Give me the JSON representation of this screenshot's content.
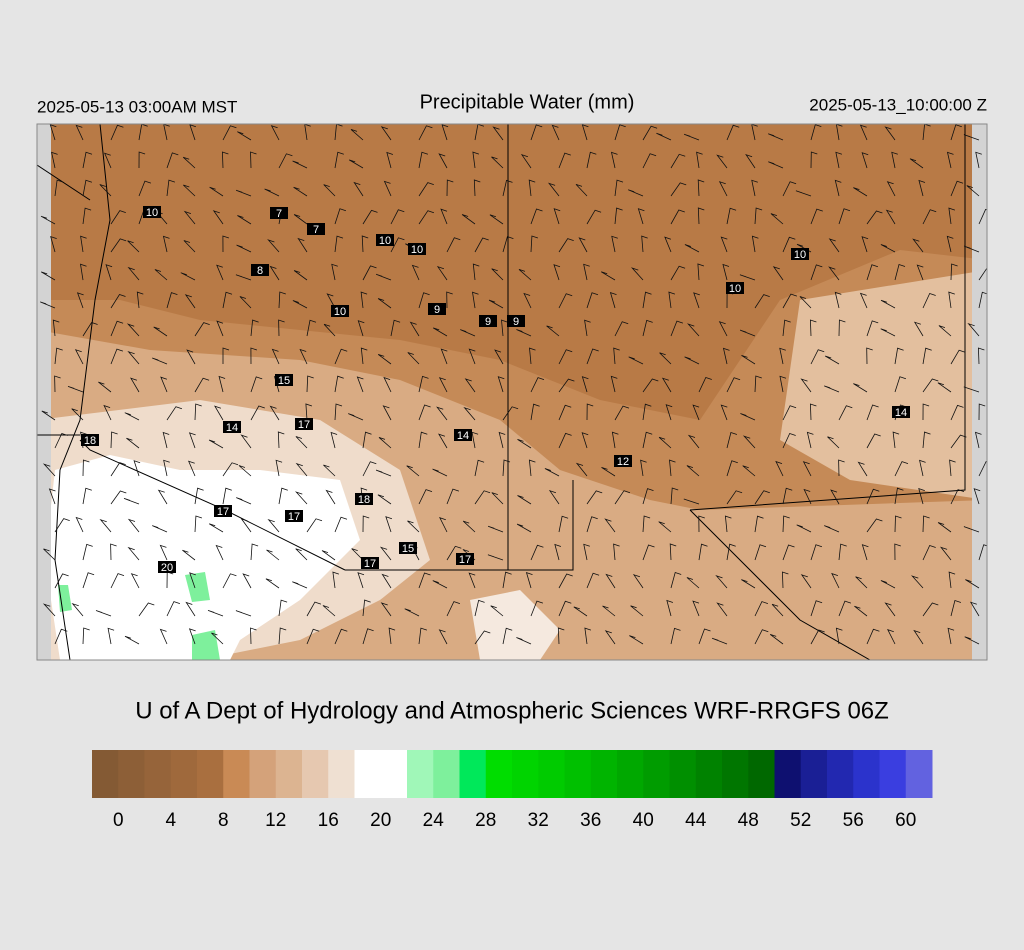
{
  "header": {
    "valid_local": "2025-05-13 03:00AM MST",
    "title": "Precipitable Water (mm)",
    "valid_utc": "2025-05-13_10:00:00 Z"
  },
  "map": {
    "labels": [
      10,
      7,
      7,
      10,
      10,
      8,
      10,
      9,
      9,
      9,
      10,
      10,
      15,
      14,
      17,
      14,
      18,
      12,
      14,
      17,
      17,
      18,
      15,
      17,
      17,
      20
    ]
  },
  "credit": "U of A Dept of Hydrology and Atmospheric Sciences WRF-RRGFS 06Z",
  "colorbar": {
    "lim": [
      -2,
      62
    ],
    "ticks": [
      0,
      4,
      8,
      12,
      16,
      20,
      24,
      28,
      32,
      36,
      40,
      44,
      48,
      52,
      56,
      60
    ],
    "colors": [
      "#845a34",
      "#8d5f37",
      "#96643a",
      "#9f693c",
      "#a96f3f",
      "#c98a55",
      "#d4a27a",
      "#dcb491",
      "#e6c8b0",
      "#efe0d2",
      "#ffffff",
      "#ffffff",
      "#a0f7b8",
      "#7ef09c",
      "#00e85a",
      "#00dd00",
      "#00d400",
      "#00cb00",
      "#00c000",
      "#00b400",
      "#00a800",
      "#009c00",
      "#008f00",
      "#008200",
      "#007600",
      "#006800",
      "#0e1070",
      "#1a1f95",
      "#2228b0",
      "#2b33cc",
      "#3a3ee0",
      "#6262e0"
    ]
  }
}
